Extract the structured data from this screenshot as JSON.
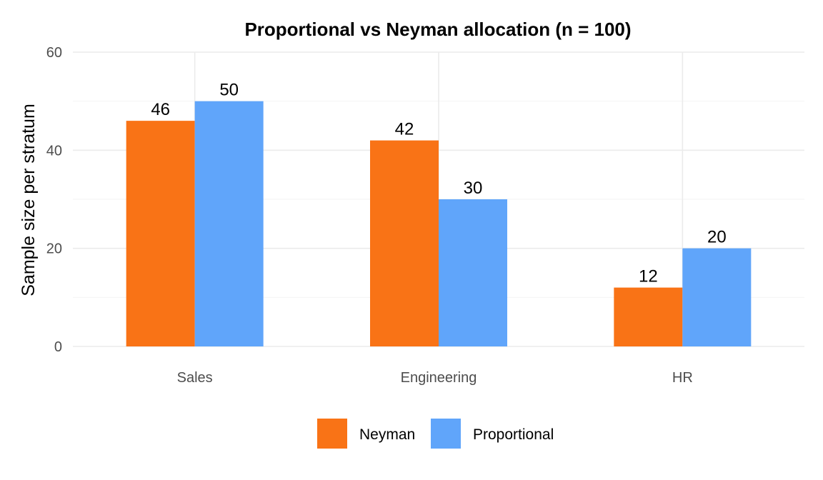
{
  "chart_data": {
    "type": "bar",
    "title": "Proportional vs Neyman allocation (n = 100)",
    "xlabel": "",
    "ylabel": "Sample size per stratum",
    "categories": [
      "Sales",
      "Engineering",
      "HR"
    ],
    "series": [
      {
        "name": "Neyman",
        "color": "#f97316",
        "values": [
          46,
          42,
          12
        ]
      },
      {
        "name": "Proportional",
        "color": "#60a5fa",
        "values": [
          50,
          30,
          20
        ]
      }
    ],
    "ylim": [
      0,
      60
    ],
    "yticks": [
      0,
      20,
      40,
      60
    ],
    "grid": true,
    "legend_position": "bottom",
    "data_labels": true
  }
}
